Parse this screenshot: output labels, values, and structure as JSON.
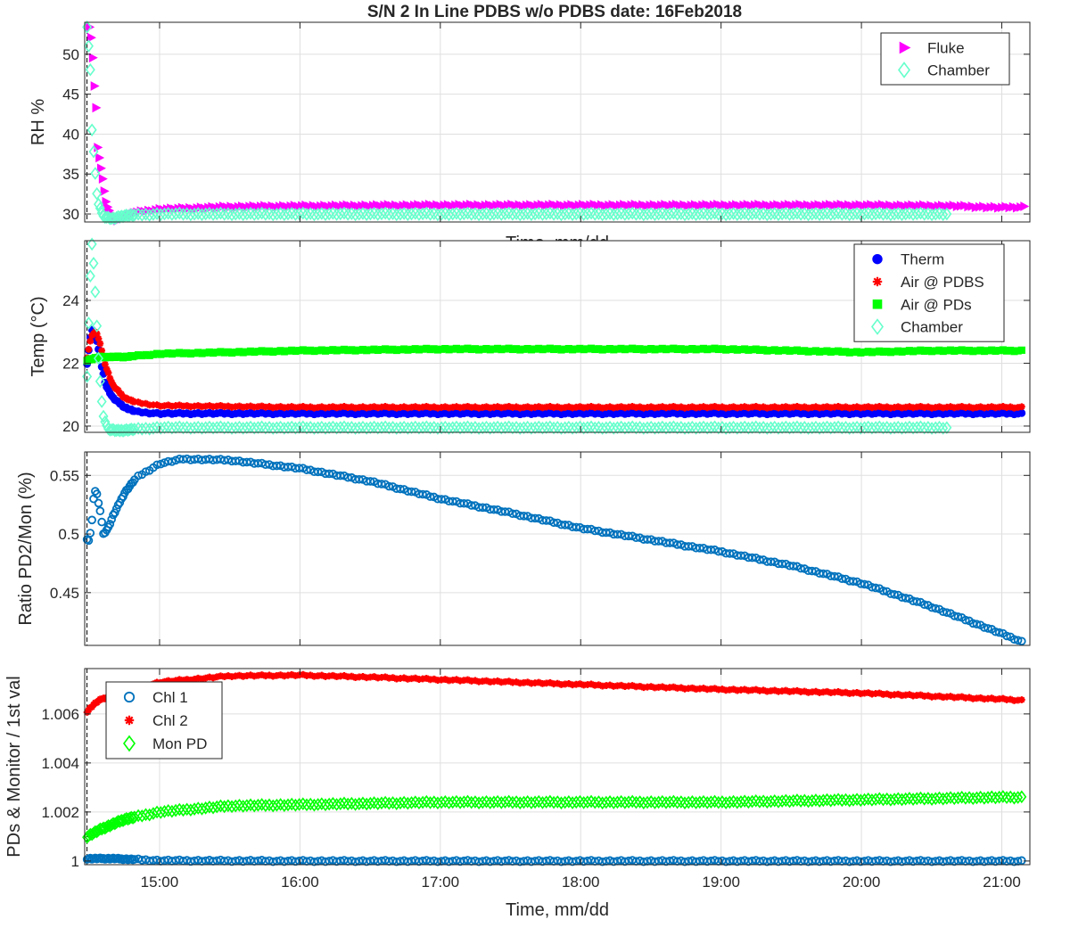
{
  "chart_data": {
    "title": "S/N 2 In Line PDBS w/o PDBS date: 16Feb2018",
    "panels": [
      {
        "type": "scatter",
        "xlabel": "Time, mm/dd",
        "ylabel": "RH %",
        "xlim": [
          "14:28",
          "21:12"
        ],
        "ylim": [
          29,
          54
        ],
        "yticks": [
          30,
          35,
          40,
          45,
          50
        ],
        "xticks": [
          "15:00",
          "16:00",
          "17:00",
          "18:00",
          "19:00",
          "20:00",
          "21:00"
        ],
        "grid": true,
        "legend_position": "top-right",
        "series": [
          {
            "name": "Fluke",
            "marker": "triangle-right",
            "color": "#ff00ff",
            "points": [
              [
                "14:30",
                53.5
              ],
              [
                "14:31",
                51.5
              ],
              [
                "14:32",
                46.5
              ],
              [
                "14:33",
                42.5
              ],
              [
                "14:33",
                39
              ],
              [
                "14:34",
                37.5
              ],
              [
                "14:35",
                35.5
              ],
              [
                "14:36",
                33.5
              ],
              [
                "14:37",
                31.5
              ],
              [
                "14:39",
                30.0
              ],
              [
                "14:42",
                29.2
              ],
              [
                "14:45",
                29.6
              ],
              [
                "14:50",
                30.2
              ],
              [
                "15:00",
                30.6
              ],
              [
                "15:30",
                30.9
              ],
              [
                "16:00",
                31.0
              ],
              [
                "17:00",
                31.1
              ],
              [
                "18:00",
                31.1
              ],
              [
                "19:00",
                31.1
              ],
              [
                "20:00",
                31.1
              ],
              [
                "20:40",
                31.0
              ],
              [
                "21:00",
                30.8
              ],
              [
                "21:10",
                30.9
              ]
            ]
          },
          {
            "name": "Chamber",
            "marker": "diamond",
            "color": "#66ffcc",
            "points": [
              [
                "14:29",
                53.5
              ],
              [
                "14:30",
                50
              ],
              [
                "14:31",
                45
              ],
              [
                "14:31",
                41
              ],
              [
                "14:32",
                37
              ],
              [
                "14:33",
                33
              ],
              [
                "14:34",
                31
              ],
              [
                "14:36",
                29.7
              ],
              [
                "14:40",
                29.4
              ],
              [
                "14:45",
                29.8
              ],
              [
                "15:00",
                30.0
              ],
              [
                "16:00",
                30.0
              ],
              [
                "17:00",
                30.0
              ],
              [
                "18:00",
                30.0
              ],
              [
                "19:00",
                30.0
              ],
              [
                "20:00",
                30.0
              ],
              [
                "20:38",
                30.0
              ]
            ]
          }
        ]
      },
      {
        "type": "scatter",
        "ylabel": "Temp (°C)",
        "xlim": [
          "14:28",
          "21:12"
        ],
        "ylim": [
          19.8,
          25.9
        ],
        "yticks": [
          20,
          22,
          24
        ],
        "xticks": [
          "15:00",
          "16:00",
          "17:00",
          "18:00",
          "19:00",
          "20:00",
          "21:00"
        ],
        "grid": true,
        "legend_position": "top-right",
        "series": [
          {
            "name": "Therm",
            "marker": "circle-filled",
            "color": "#0000ff",
            "points": [
              [
                "14:29",
                22.0
              ],
              [
                "14:30",
                22.6
              ],
              [
                "14:31",
                23.1
              ],
              [
                "14:33",
                22.8
              ],
              [
                "14:35",
                22.0
              ],
              [
                "14:37",
                21.3
              ],
              [
                "14:40",
                20.9
              ],
              [
                "14:45",
                20.6
              ],
              [
                "14:50",
                20.45
              ],
              [
                "15:00",
                20.4
              ],
              [
                "16:00",
                20.4
              ],
              [
                "17:00",
                20.4
              ],
              [
                "18:00",
                20.4
              ],
              [
                "19:00",
                20.4
              ],
              [
                "20:00",
                20.4
              ],
              [
                "21:00",
                20.4
              ],
              [
                "21:10",
                20.4
              ]
            ]
          },
          {
            "name": "Air @ PDBS",
            "marker": "asterisk",
            "color": "#ff0000",
            "points": [
              [
                "14:29",
                22.2
              ],
              [
                "14:31",
                22.9
              ],
              [
                "14:33",
                23.0
              ],
              [
                "14:35",
                22.5
              ],
              [
                "14:37",
                21.9
              ],
              [
                "14:40",
                21.3
              ],
              [
                "14:45",
                20.9
              ],
              [
                "14:50",
                20.75
              ],
              [
                "15:00",
                20.65
              ],
              [
                "16:00",
                20.6
              ],
              [
                "17:00",
                20.6
              ],
              [
                "18:00",
                20.6
              ],
              [
                "19:00",
                20.6
              ],
              [
                "20:00",
                20.6
              ],
              [
                "21:00",
                20.6
              ],
              [
                "21:10",
                20.6
              ]
            ]
          },
          {
            "name": "Air @ PDs",
            "marker": "square-filled",
            "color": "#00ff00",
            "points": [
              [
                "14:29",
                22.1
              ],
              [
                "14:35",
                22.2
              ],
              [
                "14:45",
                22.2
              ],
              [
                "15:00",
                22.3
              ],
              [
                "15:30",
                22.35
              ],
              [
                "16:00",
                22.4
              ],
              [
                "17:00",
                22.45
              ],
              [
                "18:00",
                22.45
              ],
              [
                "19:00",
                22.45
              ],
              [
                "20:00",
                22.35
              ],
              [
                "20:30",
                22.4
              ],
              [
                "21:00",
                22.4
              ],
              [
                "21:10",
                22.4
              ]
            ]
          },
          {
            "name": "Chamber",
            "marker": "diamond",
            "color": "#66ffcc",
            "points": [
              [
                "14:29",
                21.6
              ],
              [
                "14:30",
                24.0
              ],
              [
                "14:31",
                25.9
              ],
              [
                "14:32",
                25.0
              ],
              [
                "14:33",
                23.5
              ],
              [
                "14:34",
                22.0
              ],
              [
                "14:35",
                21.0
              ],
              [
                "14:36",
                20.3
              ],
              [
                "14:38",
                19.9
              ],
              [
                "14:42",
                19.85
              ],
              [
                "14:50",
                19.9
              ],
              [
                "15:00",
                19.95
              ],
              [
                "16:00",
                19.95
              ],
              [
                "17:00",
                19.95
              ],
              [
                "18:00",
                19.95
              ],
              [
                "19:00",
                19.95
              ],
              [
                "20:00",
                19.95
              ],
              [
                "20:38",
                19.95
              ]
            ]
          }
        ]
      },
      {
        "type": "scatter",
        "ylabel": "Ratio PD2/Mon (%)",
        "xlim": [
          "14:28",
          "21:12"
        ],
        "ylim": [
          0.405,
          0.57
        ],
        "yticks": [
          0.45,
          0.5,
          0.55
        ],
        "xticks": [
          "15:00",
          "16:00",
          "17:00",
          "18:00",
          "19:00",
          "20:00",
          "21:00"
        ],
        "grid": true,
        "series": [
          {
            "name": "",
            "marker": "circle-open",
            "color": "#0072bd",
            "points": [
              [
                "14:29",
                0.496
              ],
              [
                "14:30",
                0.494
              ],
              [
                "14:31",
                0.51
              ],
              [
                "14:32",
                0.535
              ],
              [
                "14:33",
                0.537
              ],
              [
                "14:34",
                0.525
              ],
              [
                "14:35",
                0.515
              ],
              [
                "14:36",
                0.5
              ],
              [
                "14:38",
                0.505
              ],
              [
                "14:40",
                0.515
              ],
              [
                "14:45",
                0.535
              ],
              [
                "14:50",
                0.548
              ],
              [
                "15:00",
                0.56
              ],
              [
                "15:10",
                0.564
              ],
              [
                "15:30",
                0.563
              ],
              [
                "16:00",
                0.556
              ],
              [
                "16:30",
                0.545
              ],
              [
                "17:00",
                0.53
              ],
              [
                "17:30",
                0.518
              ],
              [
                "18:00",
                0.505
              ],
              [
                "18:30",
                0.495
              ],
              [
                "19:00",
                0.485
              ],
              [
                "19:30",
                0.473
              ],
              [
                "20:00",
                0.458
              ],
              [
                "20:30",
                0.438
              ],
              [
                "21:00",
                0.415
              ],
              [
                "21:10",
                0.407
              ]
            ]
          }
        ]
      },
      {
        "type": "scatter",
        "xlabel": "Time, mm/dd",
        "ylabel": "PDs & Monitor / 1st val",
        "xlim": [
          "14:28",
          "21:12"
        ],
        "ylim": [
          0.99985,
          1.00785
        ],
        "yticks": [
          1,
          1.002,
          1.004,
          1.006
        ],
        "xticks": [
          "15:00",
          "16:00",
          "17:00",
          "18:00",
          "19:00",
          "20:00",
          "21:00"
        ],
        "grid": true,
        "legend_position": "top-left",
        "series": [
          {
            "name": "Chl 1",
            "marker": "circle-open",
            "color": "#0072bd",
            "points": [
              [
                "14:29",
                1.0001
              ],
              [
                "14:40",
                1.0001
              ],
              [
                "15:00",
                1.00002
              ],
              [
                "16:00",
                1.0
              ],
              [
                "17:00",
                1.0
              ],
              [
                "18:00",
                1.0
              ],
              [
                "19:00",
                1.0
              ],
              [
                "20:00",
                1.0
              ],
              [
                "21:00",
                1.0
              ],
              [
                "21:10",
                1.0
              ]
            ]
          },
          {
            "name": "Chl 2",
            "marker": "asterisk",
            "color": "#ff0000",
            "points": [
              [
                "14:29",
                1.0061
              ],
              [
                "14:32",
                1.0064
              ],
              [
                "14:35",
                1.0066
              ],
              [
                "14:45",
                1.0069
              ],
              [
                "15:00",
                1.0073
              ],
              [
                "15:30",
                1.00755
              ],
              [
                "16:00",
                1.00758
              ],
              [
                "16:30",
                1.0075
              ],
              [
                "17:00",
                1.0074
              ],
              [
                "18:00",
                1.0072
              ],
              [
                "19:00",
                1.007
              ],
              [
                "20:00",
                1.00685
              ],
              [
                "21:00",
                1.0066
              ],
              [
                "21:10",
                1.00655
              ]
            ]
          },
          {
            "name": "Mon PD",
            "marker": "diamond",
            "color": "#00ff00",
            "points": [
              [
                "14:29",
                1.001
              ],
              [
                "14:35",
                1.0013
              ],
              [
                "14:45",
                1.0017
              ],
              [
                "15:00",
                1.002
              ],
              [
                "15:30",
                1.00225
              ],
              [
                "16:00",
                1.0023
              ],
              [
                "17:00",
                1.0024
              ],
              [
                "18:00",
                1.0024
              ],
              [
                "19:00",
                1.0024
              ],
              [
                "20:00",
                1.0025
              ],
              [
                "21:00",
                1.0026
              ],
              [
                "21:10",
                1.0026
              ]
            ]
          }
        ]
      }
    ]
  }
}
